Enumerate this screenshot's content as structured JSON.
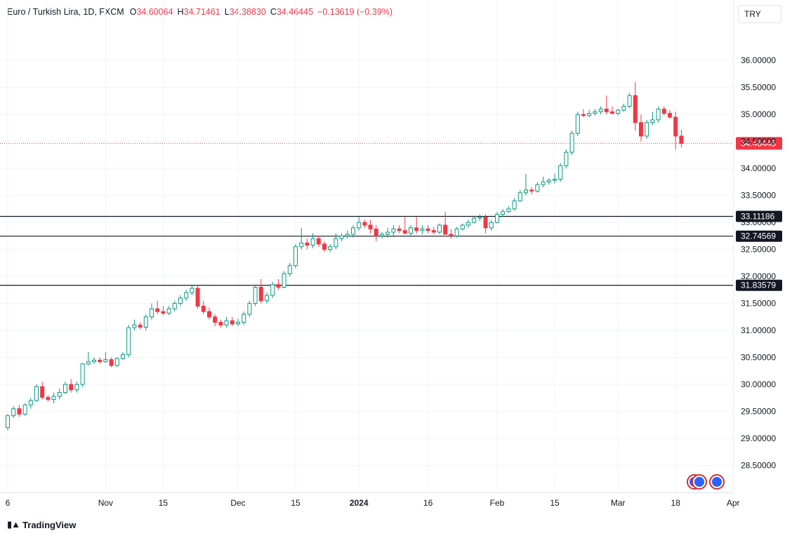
{
  "header": {
    "symbol": "Euro / Turkish Lira, 1D, FXCM",
    "open_label": "O",
    "open": "34.60064",
    "high_label": "H",
    "high": "34.71461",
    "low_label": "L",
    "low": "34.38830",
    "close_label": "C",
    "close": "34.46445",
    "change": "−0.13619 (−0.39%)"
  },
  "currency": "TRY",
  "footer": {
    "brand": "TradingView",
    "logo_icon": "tradingview-logo-icon"
  },
  "colors": {
    "up": "#089981",
    "down": "#f23645",
    "level": "#131722",
    "grid": "#f0f3fa"
  },
  "chart_data": {
    "type": "candlestick",
    "y_range": [
      28.0,
      36.6
    ],
    "y_ticks": [
      "28.50000",
      "29.00000",
      "29.50000",
      "30.00000",
      "30.50000",
      "31.00000",
      "31.50000",
      "32.00000",
      "32.50000",
      "33.00000",
      "33.50000",
      "34.00000",
      "34.50000",
      "35.00000",
      "35.50000",
      "36.00000"
    ],
    "x_labels": [
      {
        "label": "6",
        "i": 0
      },
      {
        "label": "Nov",
        "i": 17
      },
      {
        "label": "15",
        "i": 27
      },
      {
        "label": "Dec",
        "i": 40
      },
      {
        "label": "15",
        "i": 50
      },
      {
        "label": "2024",
        "i": 61,
        "bold": true
      },
      {
        "label": "16",
        "i": 73
      },
      {
        "label": "Feb",
        "i": 85
      },
      {
        "label": "15",
        "i": 95
      },
      {
        "label": "Mar",
        "i": 106
      },
      {
        "label": "18",
        "i": 116
      },
      {
        "label": "Apr",
        "i": 126
      }
    ],
    "last_price": {
      "value": 34.46445,
      "label": "34.46445"
    },
    "levels": [
      {
        "value": 33.11186,
        "label": "33.11186"
      },
      {
        "value": 32.74569,
        "label": "32.74569"
      },
      {
        "value": 31.83579,
        "label": "31.83579"
      }
    ],
    "candles": [
      [
        29.2,
        29.45,
        29.15,
        29.42
      ],
      [
        29.42,
        29.6,
        29.38,
        29.55
      ],
      [
        29.55,
        29.62,
        29.4,
        29.45
      ],
      [
        29.45,
        29.65,
        29.42,
        29.62
      ],
      [
        29.62,
        29.75,
        29.55,
        29.7
      ],
      [
        29.7,
        30.0,
        29.68,
        29.96
      ],
      [
        29.96,
        30.05,
        29.72,
        29.76
      ],
      [
        29.76,
        29.8,
        29.68,
        29.72
      ],
      [
        29.72,
        29.85,
        29.65,
        29.78
      ],
      [
        29.78,
        29.92,
        29.72,
        29.85
      ],
      [
        29.85,
        30.05,
        29.82,
        30.0
      ],
      [
        30.0,
        30.1,
        29.85,
        29.9
      ],
      [
        29.9,
        30.05,
        29.85,
        30.0
      ],
      [
        30.0,
        30.4,
        29.95,
        30.38
      ],
      [
        30.38,
        30.6,
        30.35,
        30.42
      ],
      [
        30.42,
        30.5,
        30.38,
        30.45
      ],
      [
        30.45,
        30.5,
        30.38,
        30.42
      ],
      [
        30.42,
        30.6,
        30.4,
        30.46
      ],
      [
        30.46,
        30.5,
        30.32,
        30.35
      ],
      [
        30.35,
        30.5,
        30.32,
        30.48
      ],
      [
        30.48,
        30.6,
        30.45,
        30.55
      ],
      [
        30.55,
        31.1,
        30.5,
        31.05
      ],
      [
        31.05,
        31.2,
        31.0,
        31.1
      ],
      [
        31.1,
        31.15,
        31.02,
        31.06
      ],
      [
        31.06,
        31.3,
        31.0,
        31.25
      ],
      [
        31.25,
        31.5,
        31.2,
        31.4
      ],
      [
        31.4,
        31.55,
        31.3,
        31.35
      ],
      [
        31.35,
        31.45,
        31.28,
        31.32
      ],
      [
        31.32,
        31.45,
        31.28,
        31.4
      ],
      [
        31.4,
        31.55,
        31.35,
        31.5
      ],
      [
        31.5,
        31.65,
        31.45,
        31.6
      ],
      [
        31.6,
        31.75,
        31.55,
        31.7
      ],
      [
        31.7,
        31.85,
        31.65,
        31.78
      ],
      [
        31.78,
        31.85,
        31.4,
        31.45
      ],
      [
        31.45,
        31.55,
        31.3,
        31.35
      ],
      [
        31.35,
        31.42,
        31.2,
        31.25
      ],
      [
        31.25,
        31.3,
        31.08,
        31.15
      ],
      [
        31.15,
        31.2,
        31.05,
        31.1
      ],
      [
        31.1,
        31.25,
        31.05,
        31.18
      ],
      [
        31.18,
        31.25,
        31.08,
        31.12
      ],
      [
        31.12,
        31.22,
        31.08,
        31.15
      ],
      [
        31.15,
        31.35,
        31.1,
        31.3
      ],
      [
        31.3,
        31.55,
        31.25,
        31.5
      ],
      [
        31.5,
        31.85,
        31.45,
        31.8
      ],
      [
        31.8,
        31.95,
        31.5,
        31.55
      ],
      [
        31.55,
        31.7,
        31.5,
        31.65
      ],
      [
        31.65,
        31.9,
        31.6,
        31.85
      ],
      [
        31.85,
        31.95,
        31.75,
        31.8
      ],
      [
        31.8,
        32.1,
        31.78,
        32.05
      ],
      [
        32.05,
        32.25,
        32.0,
        32.2
      ],
      [
        32.2,
        32.6,
        32.15,
        32.55
      ],
      [
        32.55,
        32.9,
        32.5,
        32.62
      ],
      [
        32.62,
        32.7,
        32.5,
        32.58
      ],
      [
        32.58,
        32.8,
        32.52,
        32.7
      ],
      [
        32.7,
        32.75,
        32.55,
        32.6
      ],
      [
        32.6,
        32.65,
        32.45,
        32.5
      ],
      [
        32.5,
        32.6,
        32.45,
        32.55
      ],
      [
        32.55,
        32.8,
        32.5,
        32.7
      ],
      [
        32.7,
        32.8,
        32.65,
        32.75
      ],
      [
        32.75,
        32.85,
        32.7,
        32.78
      ],
      [
        32.78,
        32.95,
        32.72,
        32.9
      ],
      [
        32.9,
        33.1,
        32.85,
        33.0
      ],
      [
        33.0,
        33.05,
        32.9,
        32.95
      ],
      [
        32.95,
        33.05,
        32.8,
        32.88
      ],
      [
        32.88,
        32.95,
        32.65,
        32.75
      ],
      [
        32.75,
        32.82,
        32.7,
        32.78
      ],
      [
        32.78,
        32.9,
        32.72,
        32.82
      ],
      [
        32.82,
        32.95,
        32.75,
        32.88
      ],
      [
        32.88,
        32.95,
        32.8,
        32.85
      ],
      [
        32.85,
        33.1,
        32.78,
        32.8
      ],
      [
        32.8,
        32.95,
        32.75,
        32.9
      ],
      [
        32.9,
        33.1,
        32.8,
        32.85
      ],
      [
        32.85,
        32.95,
        32.78,
        32.88
      ],
      [
        32.88,
        32.95,
        32.8,
        32.85
      ],
      [
        32.85,
        32.92,
        32.78,
        32.82
      ],
      [
        32.82,
        32.98,
        32.78,
        32.95
      ],
      [
        32.95,
        33.2,
        32.8,
        32.78
      ],
      [
        32.78,
        32.88,
        32.7,
        32.75
      ],
      [
        32.75,
        32.92,
        32.72,
        32.88
      ],
      [
        32.88,
        32.98,
        32.85,
        32.95
      ],
      [
        32.95,
        33.05,
        32.9,
        33.0
      ],
      [
        33.0,
        33.12,
        32.98,
        33.08
      ],
      [
        33.08,
        33.15,
        33.02,
        33.1
      ],
      [
        33.1,
        33.15,
        32.8,
        32.9
      ],
      [
        32.9,
        33.05,
        32.85,
        33.0
      ],
      [
        33.0,
        33.2,
        32.98,
        33.15
      ],
      [
        33.15,
        33.25,
        33.1,
        33.2
      ],
      [
        33.2,
        33.3,
        33.18,
        33.25
      ],
      [
        33.25,
        33.45,
        33.22,
        33.4
      ],
      [
        33.4,
        33.6,
        33.38,
        33.55
      ],
      [
        33.55,
        33.9,
        33.5,
        33.6
      ],
      [
        33.6,
        33.65,
        33.52,
        33.58
      ],
      [
        33.58,
        33.75,
        33.55,
        33.7
      ],
      [
        33.7,
        33.85,
        33.65,
        33.75
      ],
      [
        33.75,
        33.82,
        33.7,
        33.78
      ],
      [
        33.78,
        33.9,
        33.72,
        33.8
      ],
      [
        33.8,
        34.1,
        33.75,
        34.05
      ],
      [
        34.05,
        34.35,
        34.0,
        34.3
      ],
      [
        34.3,
        34.7,
        34.25,
        34.65
      ],
      [
        34.65,
        35.05,
        34.6,
        35.0
      ],
      [
        35.0,
        35.1,
        34.95,
        34.98
      ],
      [
        34.98,
        35.08,
        34.95,
        35.02
      ],
      [
        35.02,
        35.1,
        34.98,
        35.05
      ],
      [
        35.05,
        35.15,
        35.0,
        35.1
      ],
      [
        35.1,
        35.35,
        35.0,
        35.05
      ],
      [
        35.05,
        35.15,
        35.0,
        35.02
      ],
      [
        35.02,
        35.1,
        34.98,
        35.08
      ],
      [
        35.08,
        35.2,
        35.05,
        35.15
      ],
      [
        35.15,
        35.4,
        35.12,
        35.35
      ],
      [
        35.35,
        35.6,
        34.7,
        34.85
      ],
      [
        34.85,
        35.0,
        34.5,
        34.6
      ],
      [
        34.6,
        34.9,
        34.55,
        34.85
      ],
      [
        34.85,
        35.05,
        34.8,
        34.9
      ],
      [
        34.9,
        35.15,
        34.85,
        35.1
      ],
      [
        35.1,
        35.15,
        34.98,
        35.02
      ],
      [
        35.02,
        35.08,
        34.92,
        34.95
      ],
      [
        34.95,
        35.05,
        34.35,
        34.6
      ],
      [
        34.60064,
        34.71461,
        34.3883,
        34.46445
      ]
    ]
  }
}
